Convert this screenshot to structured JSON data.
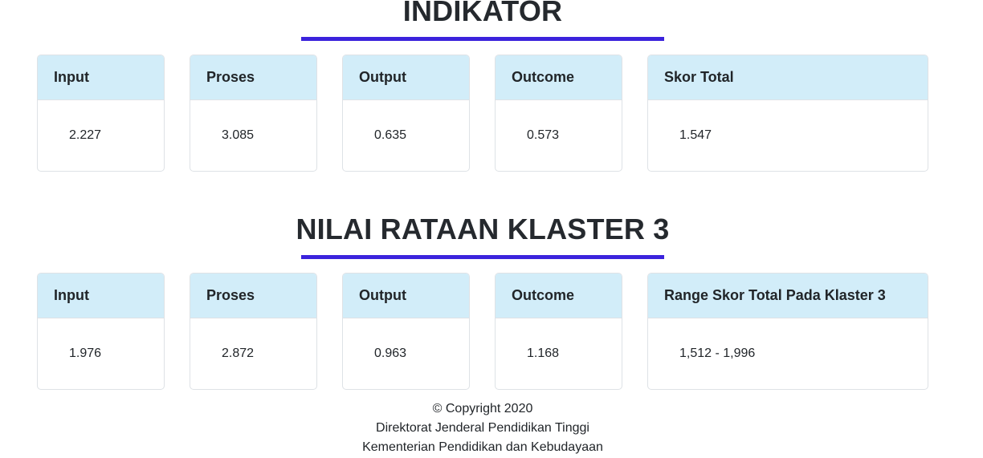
{
  "theme": {
    "accent_underline_color": "#3b23dc",
    "card_header_bg": "#d2edf9",
    "card_border_color": "#dee2e6",
    "title_color": "#25292e"
  },
  "sections": [
    {
      "title": "INDIKATOR",
      "cards": [
        {
          "label": "Input",
          "value": "2.227"
        },
        {
          "label": "Proses",
          "value": "3.085"
        },
        {
          "label": "Output",
          "value": "0.635"
        },
        {
          "label": "Outcome",
          "value": "0.573"
        },
        {
          "label": "Skor Total",
          "value": "1.547"
        }
      ]
    },
    {
      "title": "NILAI RATAAN KLASTER 3",
      "cards": [
        {
          "label": "Input",
          "value": "1.976"
        },
        {
          "label": "Proses",
          "value": "2.872"
        },
        {
          "label": "Output",
          "value": "0.963"
        },
        {
          "label": "Outcome",
          "value": "1.168"
        },
        {
          "label": "Range Skor Total Pada Klaster 3",
          "value": "1,512 - 1,996"
        }
      ]
    }
  ],
  "footer": {
    "lines": [
      "© Copyright 2020",
      "Direktorat Jenderal Pendidikan Tinggi",
      "Kementerian Pendidikan dan Kebudayaan"
    ]
  }
}
